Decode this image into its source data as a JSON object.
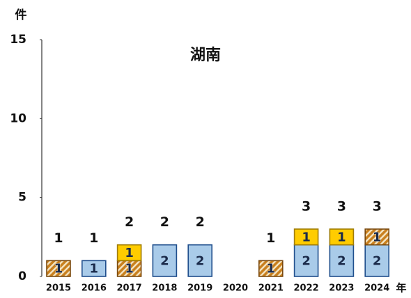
{
  "chart_data": {
    "type": "stacked_bar",
    "title": "湖南",
    "ylabel": "件",
    "xlabel": "年",
    "categories": [
      "2015",
      "2016",
      "2017",
      "2018",
      "2019",
      "2020",
      "2021",
      "2022",
      "2023",
      "2024"
    ],
    "series": [
      {
        "color": "#a9cbe9",
        "stroke": "#1f4e8c",
        "hatch": false,
        "values": [
          0,
          1,
          0,
          2,
          2,
          0,
          0,
          2,
          2,
          2
        ]
      },
      {
        "color": "#c9801e",
        "stroke": "#7a4a10",
        "hatch": true,
        "values": [
          1,
          0,
          1,
          0,
          0,
          0,
          1,
          0,
          0,
          1
        ]
      },
      {
        "color": "#ffcc00",
        "stroke": "#a07c00",
        "hatch": false,
        "values": [
          0,
          0,
          1,
          0,
          0,
          0,
          0,
          1,
          1,
          0
        ]
      }
    ],
    "totals": [
      1,
      1,
      2,
      2,
      2,
      null,
      1,
      3,
      3,
      3
    ],
    "ylim": [
      0,
      15
    ],
    "yticks": [
      0,
      5,
      10,
      15
    ],
    "grid": false
  }
}
